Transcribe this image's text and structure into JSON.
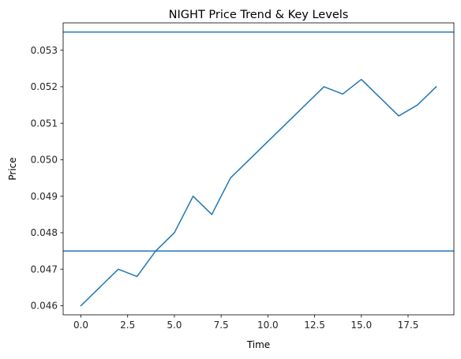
{
  "chart_data": {
    "type": "line",
    "title": "NIGHT Price Trend & Key Levels",
    "xlabel": "Time",
    "ylabel": "Price",
    "xlim": [
      -0.95,
      19.95
    ],
    "ylim": [
      0.04575,
      0.05375
    ],
    "x_ticks": [
      0,
      2.5,
      5,
      7.5,
      10,
      12.5,
      15,
      17.5
    ],
    "x_tick_labels": [
      "0.0",
      "2.5",
      "5.0",
      "7.5",
      "10.0",
      "12.5",
      "15.0",
      "17.5"
    ],
    "y_ticks": [
      0.046,
      0.047,
      0.048,
      0.049,
      0.05,
      0.051,
      0.052,
      0.053
    ],
    "y_tick_labels": [
      "0.046",
      "0.047",
      "0.048",
      "0.049",
      "0.050",
      "0.051",
      "0.052",
      "0.053"
    ],
    "grid": false,
    "legend": "none",
    "series": [
      {
        "x": [
          0,
          1,
          2,
          3,
          4,
          5,
          6,
          7,
          8,
          9,
          10,
          11,
          12,
          13,
          14,
          15,
          16,
          17,
          18,
          19
        ],
        "values": [
          0.046,
          0.0465,
          0.047,
          0.0468,
          0.0475,
          0.048,
          0.049,
          0.0485,
          0.0495,
          0.05,
          0.0505,
          0.051,
          0.0515,
          0.052,
          0.0518,
          0.0522,
          0.0517,
          0.0512,
          0.0515,
          0.052
        ],
        "color": "#1f77b4"
      }
    ],
    "hlines": [
      {
        "y": 0.0535,
        "color": "#1f77b4"
      },
      {
        "y": 0.0475,
        "color": "#1f77b4"
      }
    ]
  }
}
